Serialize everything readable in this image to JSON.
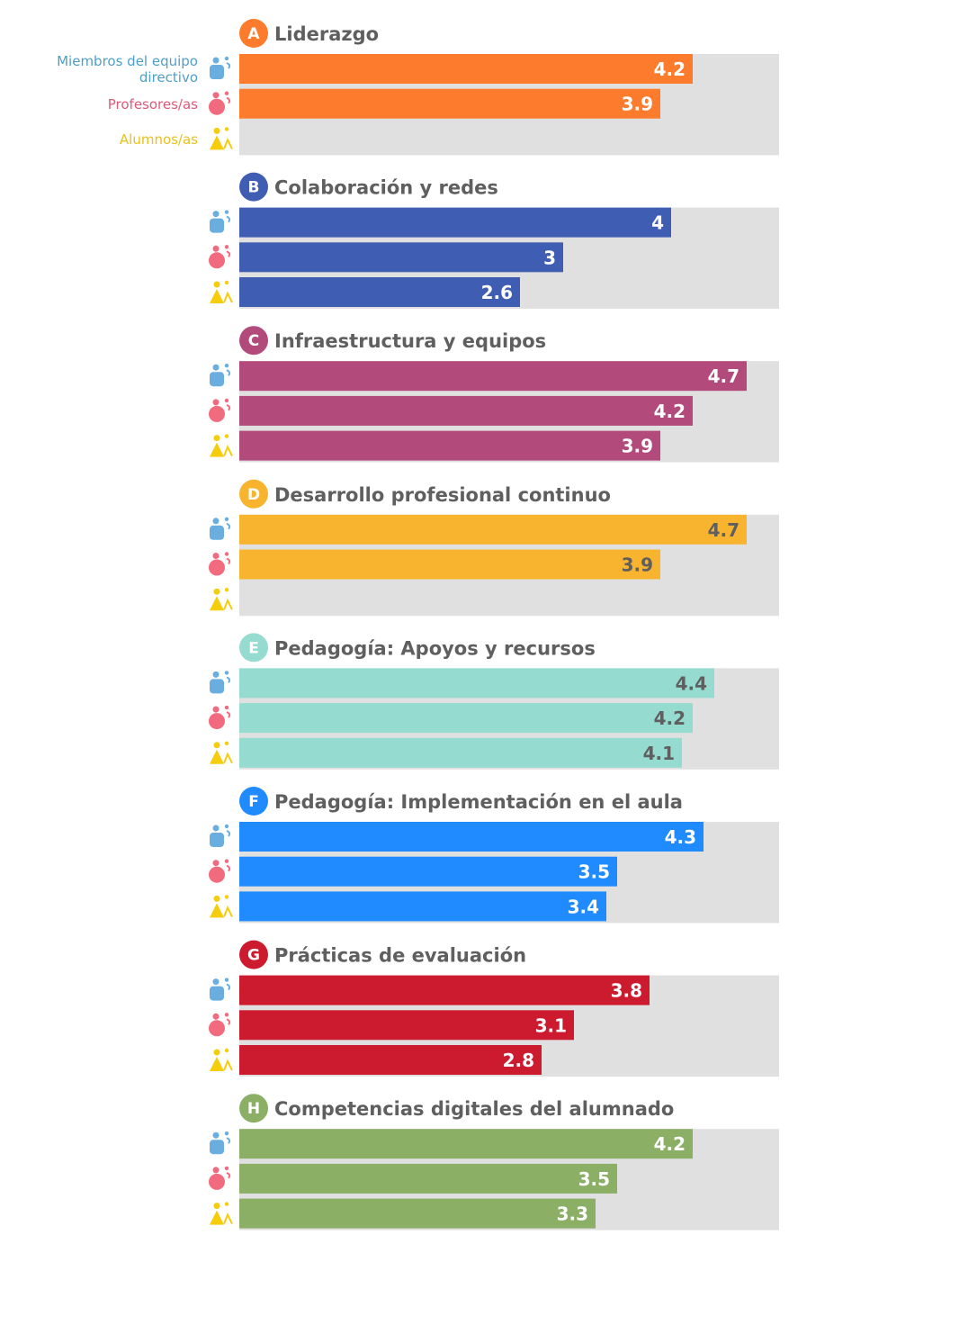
{
  "chart_data": {
    "type": "bar",
    "orientation": "horizontal",
    "xlim": [
      0,
      5
    ],
    "series_names": [
      "Miembros del equipo directivo",
      "Profesores/as",
      "Alumnos/as"
    ],
    "legend": {
      "lines": [
        [
          "Miembros del equipo",
          "directivo"
        ],
        [
          "Profesores/as"
        ],
        [
          "Alumnos/as"
        ]
      ],
      "colors": [
        "#4f9fc9",
        "#e05a78",
        "#e8c21a"
      ],
      "icon_colors": [
        "#6aaee0",
        "#f26a7e",
        "#f5cd0d"
      ],
      "icons": [
        "leader-icon",
        "teacher-icon",
        "student-icon"
      ]
    },
    "groups": [
      {
        "letter": "A",
        "title": "Liderazgo",
        "color": "#fd7b2c",
        "label_color": "#ffffff",
        "values": [
          4.2,
          3.9,
          null
        ],
        "labels": [
          "4.2",
          "3.9",
          ""
        ]
      },
      {
        "letter": "B",
        "title": "Colaboración y redes",
        "color": "#405db4",
        "label_color": "#ffffff",
        "values": [
          4,
          3,
          2.6
        ],
        "labels": [
          "4",
          "3",
          "2.6"
        ]
      },
      {
        "letter": "C",
        "title": "Infraestructura y equipos",
        "color": "#b24a7c",
        "label_color": "#ffffff",
        "values": [
          4.7,
          4.2,
          3.9
        ],
        "labels": [
          "4.7",
          "4.2",
          "3.9"
        ]
      },
      {
        "letter": "D",
        "title": "Desarrollo profesional continuo",
        "color": "#f8b42f",
        "label_color": "#5f5f5f",
        "values": [
          4.7,
          3.9,
          null
        ],
        "labels": [
          "4.7",
          "3.9",
          ""
        ]
      },
      {
        "letter": "E",
        "title": "Pedagogía: Apoyos y recursos",
        "color": "#95dbd0",
        "label_color": "#5f5f5f",
        "values": [
          4.4,
          4.2,
          4.1
        ],
        "labels": [
          "4.4",
          "4.2",
          "4.1"
        ]
      },
      {
        "letter": "F",
        "title": "Pedagogía: Implementación en el aula",
        "color": "#1f8bff",
        "label_color": "#ffffff",
        "values": [
          4.3,
          3.5,
          3.4
        ],
        "labels": [
          "4.3",
          "3.5",
          "3.4"
        ]
      },
      {
        "letter": "G",
        "title": "Prácticas de evaluación",
        "color": "#cc1b2e",
        "label_color": "#ffffff",
        "values": [
          3.8,
          3.1,
          2.8
        ],
        "labels": [
          "3.8",
          "3.1",
          "2.8"
        ]
      },
      {
        "letter": "H",
        "title": "Competencias digitales del alumnado",
        "color": "#8aaf65",
        "label_color": "#ffffff",
        "values": [
          4.2,
          3.5,
          3.3
        ],
        "labels": [
          "4.2",
          "3.5",
          "3.3"
        ]
      }
    ],
    "background_color": "#e0e0e0"
  }
}
